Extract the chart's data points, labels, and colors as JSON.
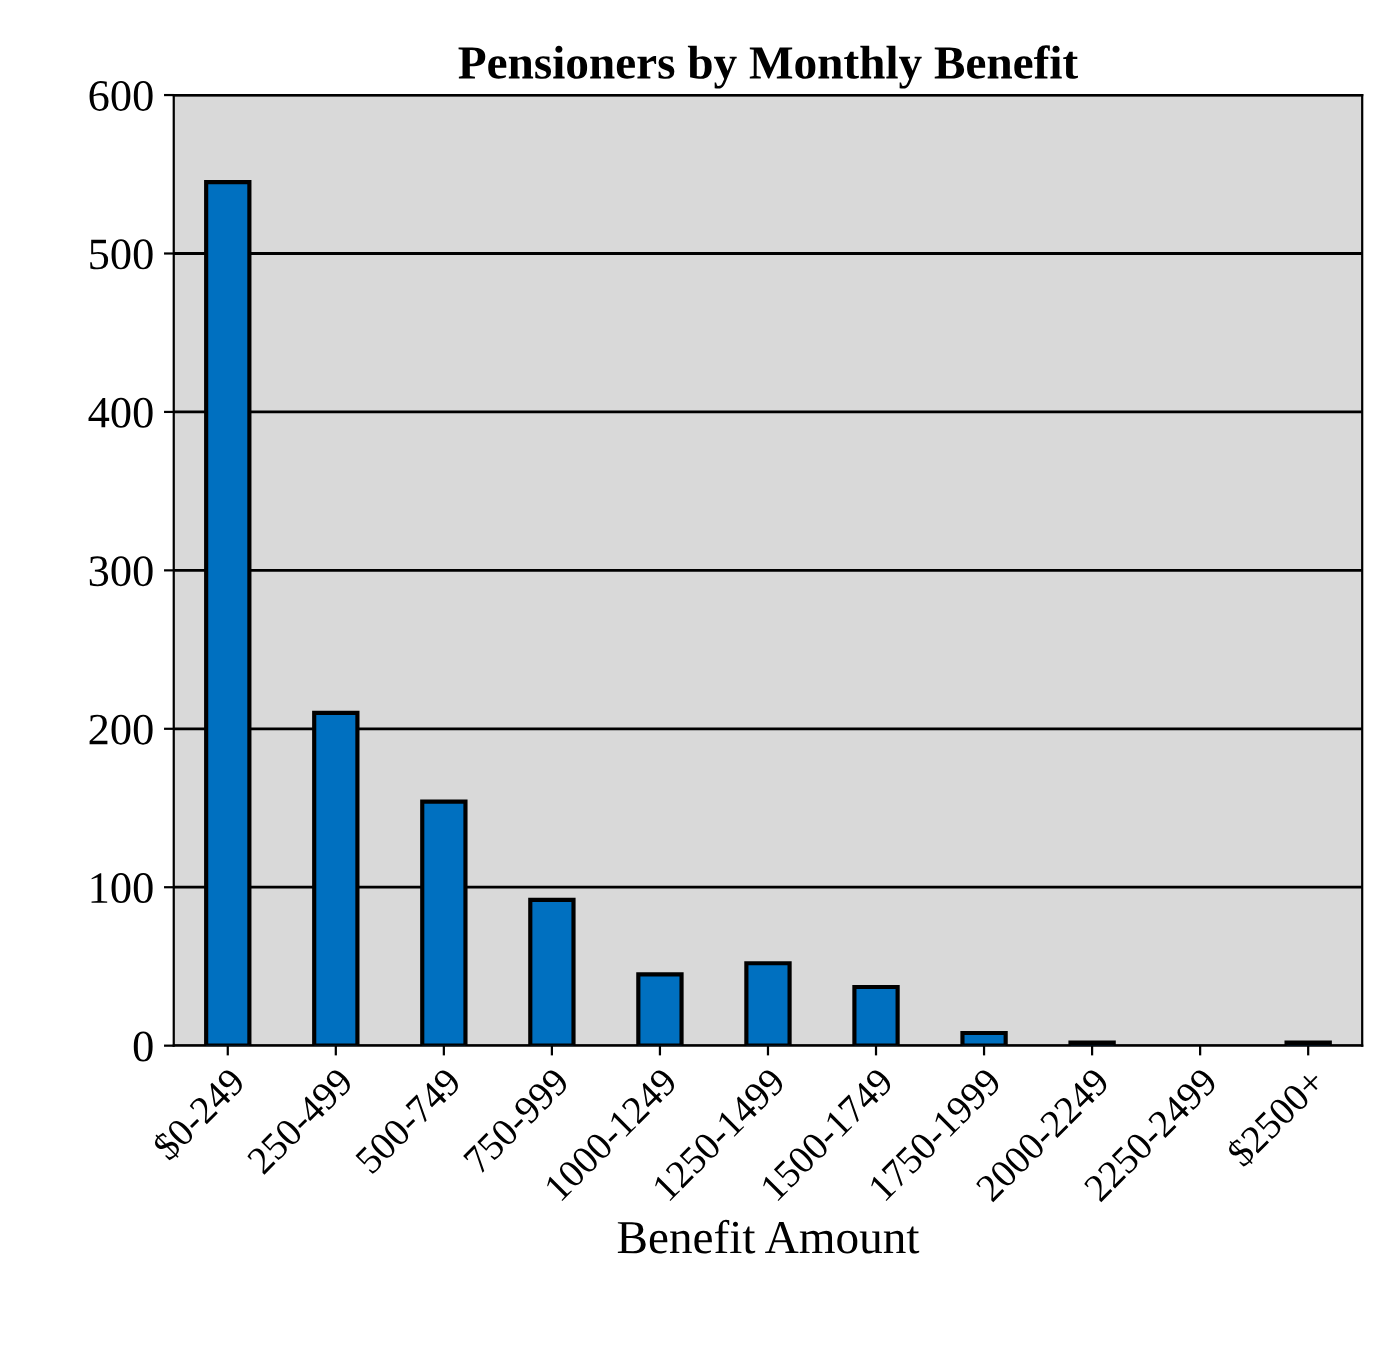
{
  "chart_data": {
    "type": "bar",
    "title": "Pensioners by Monthly Benefit",
    "xlabel": "Benefit Amount",
    "categories": [
      "$0-249",
      "250-499",
      "500-749",
      "750-999",
      "1000-1249",
      "1250-1499",
      "1500-1749",
      "1750-1999",
      "2000-2249",
      "2250-2499",
      "$2500+"
    ],
    "values": [
      545,
      210,
      154,
      92,
      45,
      52,
      37,
      8,
      2,
      0,
      2
    ],
    "color": "#0070c0",
    "ylim": [
      0,
      600
    ],
    "yticks": [
      0,
      100,
      200,
      300,
      400,
      500,
      600
    ],
    "grid": "y",
    "legend": false
  }
}
